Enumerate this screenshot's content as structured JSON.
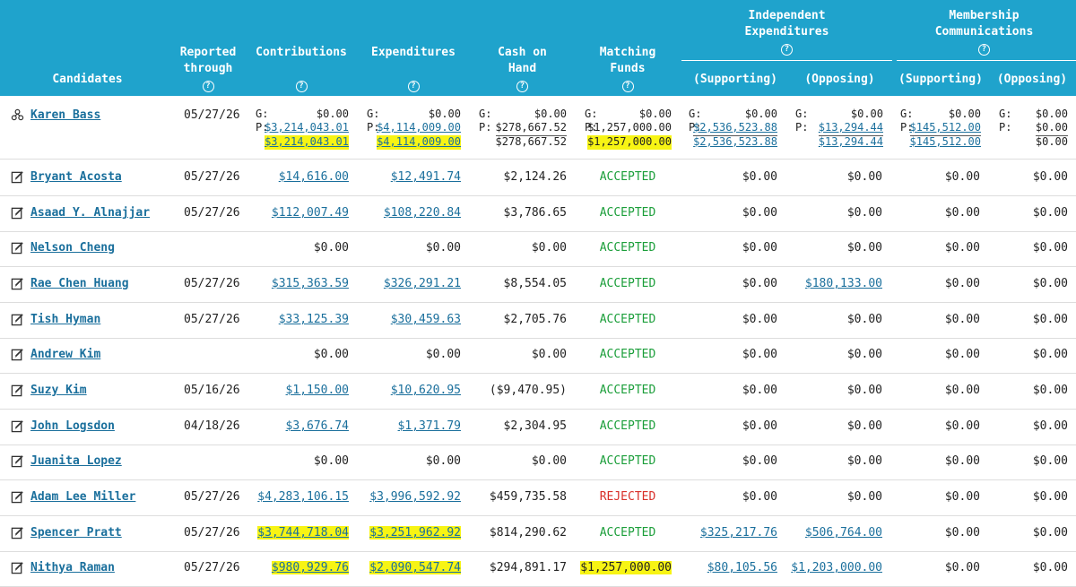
{
  "header": {
    "candidates": "Candidates",
    "reported_through_1": "Reported",
    "reported_through_2": "through",
    "contributions": "Contributions",
    "expenditures": "Expenditures",
    "cash_1": "Cash on",
    "cash_2": "Hand",
    "matching_1": "Matching",
    "matching_2": "Funds",
    "ie_1": "Independent",
    "ie_2": "Expenditures",
    "mc_1": "Membership",
    "mc_2": "Communications",
    "supporting": "(Supporting)",
    "opposing": "(Opposing)",
    "help": "?"
  },
  "colors": {
    "header_bg": "#1fa3cc",
    "link": "#1a6f9c",
    "accepted": "#1b9e3a",
    "rejected": "#d9302a",
    "highlight": "#f7f414"
  },
  "karen": {
    "name": "Karen Bass",
    "date": "05/27/26",
    "g_label": "G:",
    "p_label": "P:",
    "contrib": {
      "g": "$0.00",
      "p": "$3,214,043.01",
      "t": "$3,214,043.01"
    },
    "expend": {
      "g": "$0.00",
      "p": "$4,114,009.00",
      "t": "$4,114,009.00"
    },
    "cash": {
      "g": "$0.00",
      "p": "$278,667.52",
      "t": "$278,667.52"
    },
    "match": {
      "g": "$0.00",
      "p": "$1,257,000.00",
      "t": "$1,257,000.00"
    },
    "ie_sup": {
      "g": "$0.00",
      "p": "$2,536,523.88",
      "t": "$2,536,523.88"
    },
    "ie_opp": {
      "g": "$0.00",
      "p": "$13,294.44",
      "t": "$13,294.44"
    },
    "mc_sup": {
      "g": "$0.00",
      "p": "$145,512.00",
      "t": "$145,512.00"
    },
    "mc_opp": {
      "g": "$0.00",
      "p": "$0.00",
      "t": "$0.00"
    }
  },
  "rows": [
    {
      "name": "Bryant Acosta",
      "date": "05/27/26",
      "contrib": "$14,616.00",
      "expend": "$12,491.74",
      "cash": "$2,124.26",
      "match": "ACCEPTED",
      "ie_sup": "$0.00",
      "ie_opp": "$0.00",
      "mc_sup": "$0.00",
      "mc_opp": "$0.00"
    },
    {
      "name": "Asaad Y. Alnajjar",
      "date": "05/27/26",
      "contrib": "$112,007.49",
      "expend": "$108,220.84",
      "cash": "$3,786.65",
      "match": "ACCEPTED",
      "ie_sup": "$0.00",
      "ie_opp": "$0.00",
      "mc_sup": "$0.00",
      "mc_opp": "$0.00"
    },
    {
      "name": "Nelson Cheng",
      "date": "",
      "contrib": "$0.00",
      "expend": "$0.00",
      "cash": "$0.00",
      "match": "ACCEPTED",
      "ie_sup": "$0.00",
      "ie_opp": "$0.00",
      "mc_sup": "$0.00",
      "mc_opp": "$0.00"
    },
    {
      "name": "Rae Chen Huang",
      "date": "05/27/26",
      "contrib": "$315,363.59",
      "expend": "$326,291.21",
      "cash": "$8,554.05",
      "match": "ACCEPTED",
      "ie_sup": "$0.00",
      "ie_opp": "$180,133.00",
      "mc_sup": "$0.00",
      "mc_opp": "$0.00"
    },
    {
      "name": "Tish Hyman",
      "date": "05/27/26",
      "contrib": "$33,125.39",
      "expend": "$30,459.63",
      "cash": "$2,705.76",
      "match": "ACCEPTED",
      "ie_sup": "$0.00",
      "ie_opp": "$0.00",
      "mc_sup": "$0.00",
      "mc_opp": "$0.00"
    },
    {
      "name": "Andrew Kim",
      "date": "",
      "contrib": "$0.00",
      "expend": "$0.00",
      "cash": "$0.00",
      "match": "ACCEPTED",
      "ie_sup": "$0.00",
      "ie_opp": "$0.00",
      "mc_sup": "$0.00",
      "mc_opp": "$0.00"
    },
    {
      "name": "Suzy Kim",
      "date": "05/16/26",
      "contrib": "$1,150.00",
      "expend": "$10,620.95",
      "cash": "($9,470.95)",
      "match": "ACCEPTED",
      "ie_sup": "$0.00",
      "ie_opp": "$0.00",
      "mc_sup": "$0.00",
      "mc_opp": "$0.00"
    },
    {
      "name": "John Logsdon",
      "date": "04/18/26",
      "contrib": "$3,676.74",
      "expend": "$1,371.79",
      "cash": "$2,304.95",
      "match": "ACCEPTED",
      "ie_sup": "$0.00",
      "ie_opp": "$0.00",
      "mc_sup": "$0.00",
      "mc_opp": "$0.00"
    },
    {
      "name": "Juanita Lopez",
      "date": "",
      "contrib": "$0.00",
      "expend": "$0.00",
      "cash": "$0.00",
      "match": "ACCEPTED",
      "ie_sup": "$0.00",
      "ie_opp": "$0.00",
      "mc_sup": "$0.00",
      "mc_opp": "$0.00"
    },
    {
      "name": "Adam Lee Miller",
      "date": "05/27/26",
      "contrib": "$4,283,106.15",
      "expend": "$3,996,592.92",
      "cash": "$459,735.58",
      "match": "REJECTED",
      "ie_sup": "$0.00",
      "ie_opp": "$0.00",
      "mc_sup": "$0.00",
      "mc_opp": "$0.00"
    },
    {
      "name": "Spencer Pratt",
      "date": "05/27/26",
      "contrib": "$3,744,718.04",
      "expend": "$3,251,962.92",
      "cash": "$814,290.62",
      "match": "ACCEPTED",
      "ie_sup": "$325,217.76",
      "ie_opp": "$506,764.00",
      "mc_sup": "$0.00",
      "mc_opp": "$0.00"
    },
    {
      "name": "Nithya Raman",
      "date": "05/27/26",
      "contrib": "$980,929.76",
      "expend": "$2,090,547.74",
      "cash": "$294,891.17",
      "match": "$1,257,000.00",
      "ie_sup": "$80,105.56",
      "ie_opp": "$1,203,000.00",
      "mc_sup": "$0.00",
      "mc_opp": "$0.00"
    }
  ]
}
